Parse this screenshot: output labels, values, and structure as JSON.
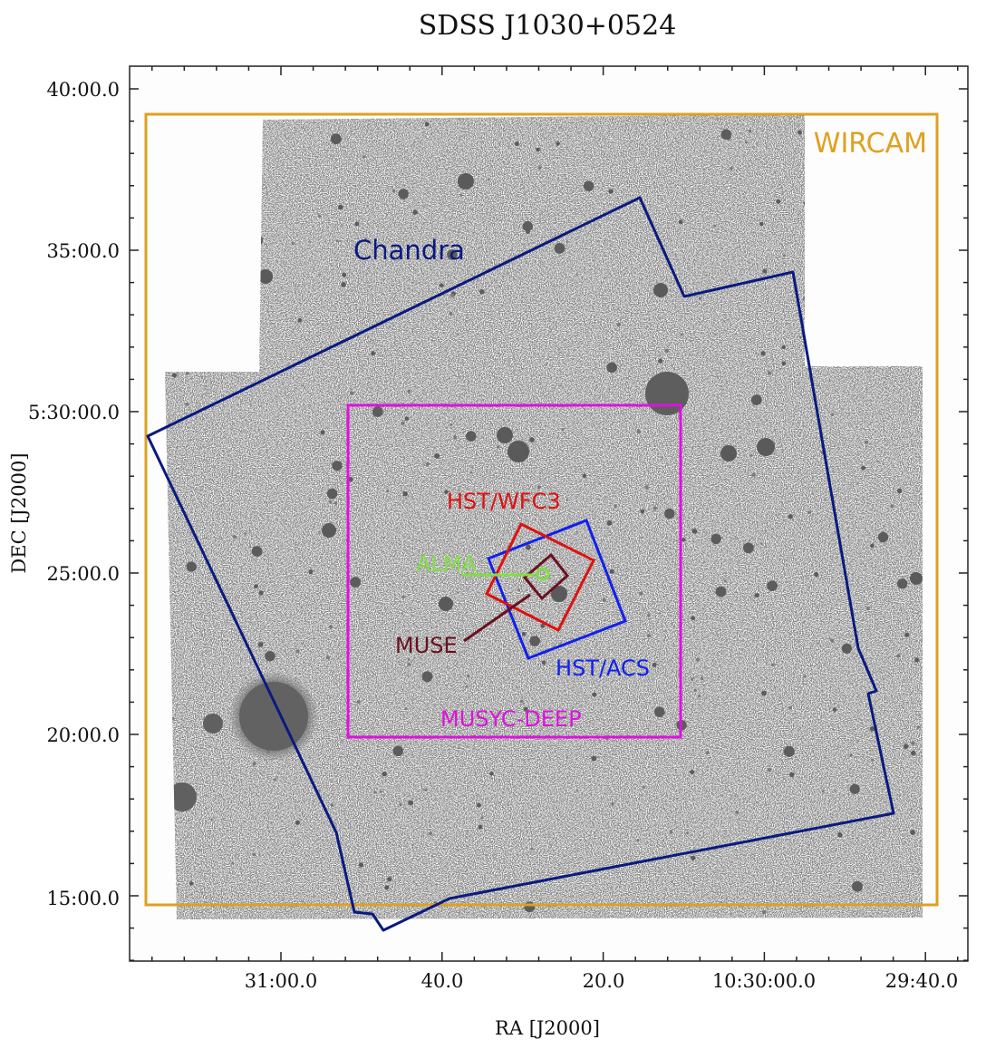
{
  "title": "SDSS J1030+0524",
  "axes": {
    "xlabel": "RA [J2000]",
    "ylabel": "DEC [J2000]",
    "x_ticks": [
      "31:00.0",
      "40.0",
      "20.0",
      "10:30:00.0",
      "29:40.0"
    ],
    "y_ticks": [
      "40:00.0",
      "35:00.0",
      "5:30:00.0",
      "25:00.0",
      "20:00.0",
      "15:00.0"
    ]
  },
  "fields": {
    "wircam": {
      "label": "WIRCAM",
      "color": "#E0A020"
    },
    "chandra": {
      "label": "Chandra",
      "color": "#0A1A80"
    },
    "musyc": {
      "label": "MUSYC-DEEP",
      "color": "#E010E0"
    },
    "wfc3": {
      "label": "HST/WFC3",
      "color": "#E01010"
    },
    "acs": {
      "label": "HST/ACS",
      "color": "#1020F0"
    },
    "alma": {
      "label": "ALMA",
      "color": "#80E040"
    },
    "muse": {
      "label": "MUSE",
      "color": "#6A1020"
    }
  },
  "image": {
    "style": "inverted grayscale sky image",
    "bright_sources": "dark blobs"
  }
}
